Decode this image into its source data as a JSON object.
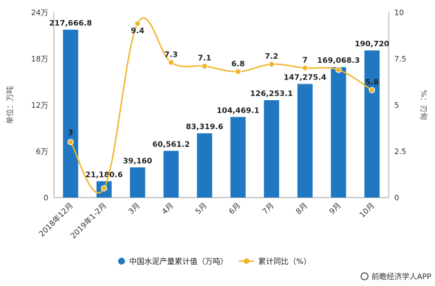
{
  "chart_data": {
    "type": "bar+line",
    "categories": [
      "2018年12月",
      "2019年1-2月",
      "3月",
      "4月",
      "5月",
      "6月",
      "7月",
      "8月",
      "9月",
      "10月"
    ],
    "series": [
      {
        "name": "中国水泥产量累计值（万吨）",
        "type": "bar",
        "axis": "left",
        "values": [
          217666.8,
          21180.6,
          39160,
          60561.2,
          83319.6,
          104469.1,
          126253.1,
          147275.4,
          169068.3,
          190720
        ],
        "labels": [
          "217,666.8",
          "21,180.6",
          "39,160",
          "60,561.2",
          "83,319.6",
          "104,469.1",
          "126,253.1",
          "147,275.4",
          "169,068.3",
          "190,720"
        ],
        "color": "#1f78c1"
      },
      {
        "name": "累计同比（%）",
        "type": "line",
        "axis": "right",
        "values": [
          3,
          0.5,
          9.4,
          7.3,
          7.1,
          6.8,
          7.2,
          7,
          6.9,
          5.8
        ],
        "labels": [
          "3",
          "",
          "9.4",
          "7.3",
          "7.1",
          "6.8",
          "7.2",
          "7",
          "",
          "5.8"
        ],
        "color": "#f0b429"
      }
    ],
    "y_left": {
      "label": "单位：万吨",
      "ticks": [
        "0",
        "6万",
        "12万",
        "18万",
        "24万"
      ],
      "tick_values": [
        0,
        60000,
        120000,
        180000,
        240000
      ],
      "range": [
        0,
        240000
      ]
    },
    "y_right": {
      "label": "%：刃甸",
      "ticks": [
        "0",
        "2.5",
        "5",
        "7.5",
        "10"
      ],
      "tick_values": [
        0,
        2.5,
        5,
        7.5,
        10
      ],
      "range": [
        0,
        10
      ]
    },
    "grid": false,
    "legend_position": "bottom"
  },
  "source": "前瞻经济学人APP",
  "colors": {
    "bar": "#1f78c1",
    "line": "#f0b429",
    "axis": "#999999"
  }
}
